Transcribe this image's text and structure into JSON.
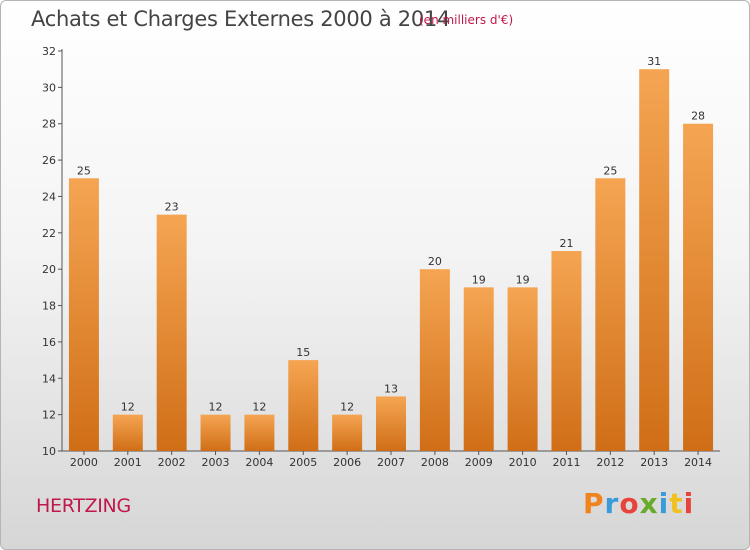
{
  "chart_data": {
    "type": "bar",
    "title": "Achats et Charges Externes 2000 à 2014",
    "subtitle": "(en milliers d'€)",
    "categories": [
      "2000",
      "2001",
      "2002",
      "2003",
      "2004",
      "2005",
      "2006",
      "2007",
      "2008",
      "2009",
      "2010",
      "2011",
      "2012",
      "2013",
      "2014"
    ],
    "values": [
      25,
      12,
      23,
      12,
      12,
      15,
      12,
      13,
      20,
      19,
      19,
      21,
      25,
      31,
      28
    ],
    "ylim": [
      10,
      32
    ],
    "yticks": [
      10,
      12,
      14,
      16,
      18,
      20,
      22,
      24,
      26,
      28,
      30,
      32
    ],
    "grid": false,
    "bar_color_top": "#f5a552",
    "bar_color_bottom": "#d06e17"
  },
  "footer": {
    "commune": "HERTZING",
    "logo": "Proxiti",
    "logo_colors": [
      "#f0831d",
      "#3a9bd9",
      "#e8433b",
      "#6aaa2a",
      "#3a9bd9",
      "#f0c020",
      "#e8433b"
    ]
  }
}
